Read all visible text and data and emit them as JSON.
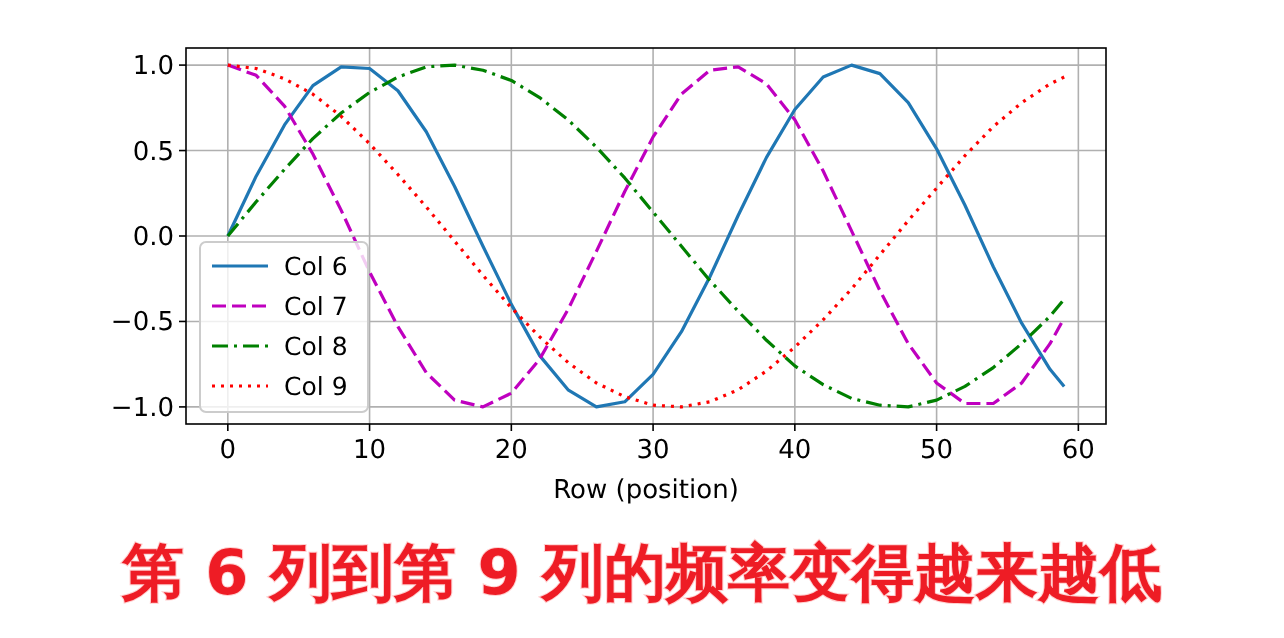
{
  "chart_data": {
    "type": "line",
    "xlabel": "Row (position)",
    "annotations": [
      "第 6 列到第 9 列的频率变得越来越低"
    ],
    "x": [
      0,
      2,
      4,
      6,
      8,
      10,
      12,
      14,
      16,
      18,
      20,
      22,
      24,
      26,
      28,
      30,
      32,
      34,
      36,
      38,
      40,
      42,
      44,
      46,
      48,
      50,
      52,
      54,
      56,
      58,
      59
    ],
    "series": [
      {
        "name": "Col 6",
        "color": "#1f77b4",
        "line_style": "solid",
        "values": [
          0,
          0.35,
          0.65,
          0.88,
          0.99,
          0.98,
          0.85,
          0.61,
          0.29,
          -0.06,
          -0.4,
          -0.7,
          -0.9,
          -1.0,
          -0.97,
          -0.81,
          -0.56,
          -0.24,
          0.12,
          0.46,
          0.74,
          0.93,
          1.0,
          0.95,
          0.78,
          0.51,
          0.18,
          -0.18,
          -0.51,
          -0.78,
          -0.88
        ]
      },
      {
        "name": "Col 7",
        "color": "#bf00bf",
        "line_style": "dashed",
        "values": [
          1.0,
          0.94,
          0.76,
          0.48,
          0.15,
          -0.21,
          -0.53,
          -0.8,
          -0.96,
          -1.0,
          -0.92,
          -0.72,
          -0.43,
          -0.09,
          0.26,
          0.58,
          0.83,
          0.97,
          0.99,
          0.89,
          0.68,
          0.38,
          0.03,
          -0.32,
          -0.63,
          -0.86,
          -0.98,
          -0.98,
          -0.86,
          -0.63,
          -0.48
        ]
      },
      {
        "name": "Col 8",
        "color": "#008000",
        "line_style": "dashdot",
        "values": [
          0,
          0.2,
          0.39,
          0.57,
          0.72,
          0.84,
          0.93,
          0.99,
          1.0,
          0.97,
          0.91,
          0.81,
          0.68,
          0.52,
          0.34,
          0.14,
          -0.06,
          -0.26,
          -0.44,
          -0.61,
          -0.76,
          -0.87,
          -0.95,
          -0.99,
          -1.0,
          -0.96,
          -0.88,
          -0.77,
          -0.63,
          -0.47,
          -0.37
        ]
      },
      {
        "name": "Col 9",
        "color": "#ff0000",
        "line_style": "dotted",
        "values": [
          1.0,
          0.98,
          0.92,
          0.83,
          0.7,
          0.54,
          0.36,
          0.17,
          -0.03,
          -0.23,
          -0.42,
          -0.59,
          -0.74,
          -0.86,
          -0.94,
          -0.99,
          -1.0,
          -0.97,
          -0.9,
          -0.79,
          -0.65,
          -0.49,
          -0.31,
          -0.11,
          0.09,
          0.28,
          0.47,
          0.64,
          0.78,
          0.89,
          0.93
        ]
      }
    ],
    "xlim": [
      -2.95,
      61.95
    ],
    "ylim": [
      -1.1,
      1.1
    ],
    "xticks": [
      0,
      10,
      20,
      30,
      40,
      50,
      60
    ],
    "yticks": [
      {
        "value": -1,
        "label": "−1.0"
      },
      {
        "value": -0.5,
        "label": "−0.5"
      },
      {
        "value": 0,
        "label": "0.0"
      },
      {
        "value": 0.5,
        "label": "0.5"
      },
      {
        "value": 1,
        "label": "1.0"
      }
    ],
    "grid": true,
    "legend": "bottom left",
    "marker": "none"
  }
}
